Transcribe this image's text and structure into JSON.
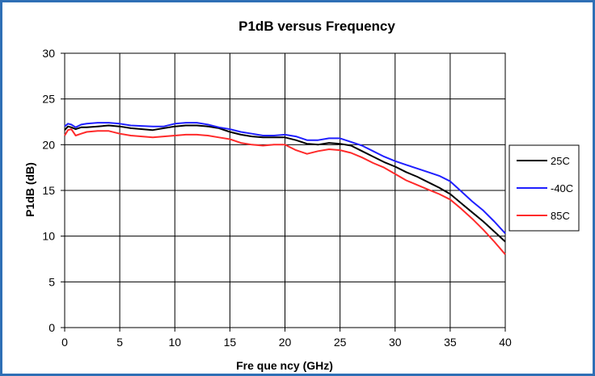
{
  "chart_data": {
    "type": "line",
    "title": "P1dB versus Frequency",
    "xlabel": "Fre que ncy (GHz)",
    "ylabel": "P1dB (dB)",
    "xlim": [
      0,
      40
    ],
    "ylim": [
      0,
      30
    ],
    "xticks": [
      "0",
      "5",
      "10",
      "15",
      "20",
      "25",
      "30",
      "35",
      "40"
    ],
    "yticks": [
      "0",
      "5",
      "10",
      "15",
      "20",
      "25",
      "30"
    ],
    "grid": true,
    "legend_position": "right",
    "series": [
      {
        "name": "25C",
        "color": "#000000",
        "x": [
          0,
          0.3,
          0.6,
          1,
          1.5,
          2,
          3,
          4,
          5,
          6,
          8,
          9,
          10,
          11,
          12,
          13,
          14,
          15,
          16,
          17,
          18,
          19,
          20,
          21,
          22,
          23,
          24,
          25,
          26,
          27,
          28,
          29,
          30,
          31,
          32,
          33,
          34,
          35,
          36,
          37,
          38,
          39,
          40
        ],
        "y": [
          21.6,
          22.0,
          21.9,
          21.7,
          21.9,
          21.9,
          22.0,
          22.1,
          22.0,
          21.8,
          21.6,
          21.8,
          22.0,
          22.1,
          22.1,
          22.0,
          21.8,
          21.4,
          21.1,
          20.9,
          20.8,
          20.8,
          20.8,
          20.5,
          20.1,
          20.0,
          20.2,
          20.1,
          19.9,
          19.3,
          18.7,
          18.1,
          17.6,
          17.0,
          16.5,
          15.9,
          15.3,
          14.6,
          13.6,
          12.6,
          11.6,
          10.5,
          9.4
        ]
      },
      {
        "name": "-40C",
        "color": "#1f1fff",
        "x": [
          0,
          0.3,
          0.6,
          1,
          1.5,
          2,
          3,
          4,
          5,
          6,
          8,
          9,
          10,
          11,
          12,
          13,
          14,
          15,
          16,
          17,
          18,
          19,
          20,
          21,
          22,
          23,
          24,
          25,
          26,
          27,
          28,
          29,
          30,
          31,
          32,
          33,
          34,
          35,
          36,
          37,
          38,
          39,
          40
        ],
        "y": [
          22.0,
          22.3,
          22.2,
          21.9,
          22.2,
          22.3,
          22.4,
          22.4,
          22.3,
          22.1,
          22.0,
          22.0,
          22.3,
          22.4,
          22.4,
          22.2,
          21.9,
          21.7,
          21.4,
          21.2,
          21.0,
          21.0,
          21.1,
          20.9,
          20.5,
          20.5,
          20.7,
          20.7,
          20.3,
          19.9,
          19.3,
          18.7,
          18.2,
          17.8,
          17.4,
          17.0,
          16.6,
          16.0,
          14.9,
          13.8,
          12.8,
          11.6,
          10.3
        ]
      },
      {
        "name": "85C",
        "color": "#ff2a2a",
        "x": [
          0,
          0.3,
          0.6,
          1,
          1.5,
          2,
          3,
          4,
          5,
          6,
          8,
          9,
          10,
          11,
          12,
          13,
          14,
          15,
          16,
          17,
          18,
          19,
          20,
          21,
          22,
          23,
          24,
          25,
          26,
          27,
          28,
          29,
          30,
          31,
          32,
          33,
          34,
          35,
          36,
          37,
          38,
          39,
          40
        ],
        "y": [
          21.0,
          21.6,
          21.7,
          21.0,
          21.2,
          21.4,
          21.5,
          21.5,
          21.2,
          21.0,
          20.8,
          20.9,
          21.0,
          21.1,
          21.1,
          21.0,
          20.8,
          20.6,
          20.2,
          20.0,
          19.9,
          20.0,
          20.0,
          19.4,
          19.0,
          19.3,
          19.5,
          19.4,
          19.1,
          18.6,
          18.0,
          17.5,
          16.8,
          16.1,
          15.6,
          15.1,
          14.6,
          14.0,
          13.0,
          11.9,
          10.7,
          9.4,
          8.0
        ]
      }
    ]
  }
}
